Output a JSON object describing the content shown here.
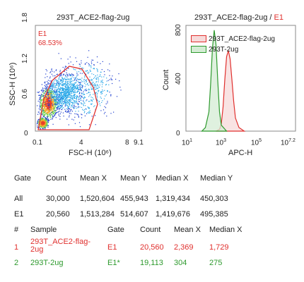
{
  "chart_data": [
    {
      "type": "scatter",
      "title": "293T_ACE2-flag-2ug",
      "xlabel": "FSC-H (10⁶)",
      "ylabel": "SSC-H (10⁶)",
      "xticks": [
        "0.1",
        "4",
        "8",
        "9.1"
      ],
      "yticks": [
        "0",
        "0.6",
        "1.2",
        "1.8"
      ],
      "xlim": [
        0.1,
        9.1
      ],
      "ylim": [
        0,
        1.8
      ],
      "gate": {
        "name": "E1",
        "percent": "68.53%"
      }
    },
    {
      "type": "area",
      "title_main": "293T_ACE2-flag-2ug / ",
      "title_gate": "E1",
      "xlabel": "APC-H",
      "ylabel": "Count",
      "xscale": "log",
      "xlim_exp": [
        1,
        7.2
      ],
      "ylim": [
        0,
        880
      ],
      "ytick_values": [
        0,
        400,
        800
      ],
      "xticks": [
        {
          "base": "10",
          "exp": "1"
        },
        {
          "base": "10",
          "exp": "3"
        },
        {
          "base": "10",
          "exp": "5"
        },
        {
          "base": "10",
          "exp": "7.2"
        }
      ],
      "legend": "top-right",
      "series": [
        {
          "name": "293T_ACE2-flag-2ug",
          "color": "#e0302e",
          "fill": "#f7dada",
          "points": [
            [
              2.7,
              0
            ],
            [
              2.9,
              15
            ],
            [
              3.0,
              60
            ],
            [
              3.1,
              200
            ],
            [
              3.2,
              430
            ],
            [
              3.3,
              620
            ],
            [
              3.4,
              670
            ],
            [
              3.5,
              600
            ],
            [
              3.6,
              430
            ],
            [
              3.7,
              250
            ],
            [
              3.8,
              110
            ],
            [
              4.0,
              30
            ],
            [
              4.3,
              0
            ]
          ]
        },
        {
          "name": "293T-2ug",
          "color": "#2e9a2e",
          "fill": "#d4ecd4",
          "points": [
            [
              1.9,
              0
            ],
            [
              2.1,
              30
            ],
            [
              2.3,
              160
            ],
            [
              2.4,
              400
            ],
            [
              2.5,
              690
            ],
            [
              2.6,
              840
            ],
            [
              2.7,
              720
            ],
            [
              2.8,
              420
            ],
            [
              2.9,
              160
            ],
            [
              3.0,
              50
            ],
            [
              3.3,
              0
            ]
          ]
        }
      ]
    }
  ],
  "stats_table": {
    "headers": [
      "Gate",
      "Count",
      "Mean X",
      "Mean Y",
      "Median X",
      "Median Y"
    ],
    "rows": [
      [
        "All",
        "30,000",
        "1,520,604",
        "455,943",
        "1,319,434",
        "450,303"
      ],
      [
        "E1",
        "20,560",
        "1,513,284",
        "514,607",
        "1,419,676",
        "495,385"
      ]
    ]
  },
  "sample_table": {
    "headers": [
      "#",
      "Sample",
      "Gate",
      "Count",
      "Mean X",
      "Median X"
    ],
    "rows": [
      {
        "num": "1",
        "sample_line1": "293T_ACE2-flag-",
        "sample_line2": "2ug",
        "gate": "E1",
        "count": "20,560",
        "mean_x": "2,369",
        "median_x": "1,729",
        "color": "#e0302e"
      },
      {
        "num": "2",
        "sample_line1": "293T-2ug",
        "sample_line2": "",
        "gate": "E1*",
        "count": "19,113",
        "mean_x": "304",
        "median_x": "275",
        "color": "#2e9a2e"
      }
    ]
  }
}
